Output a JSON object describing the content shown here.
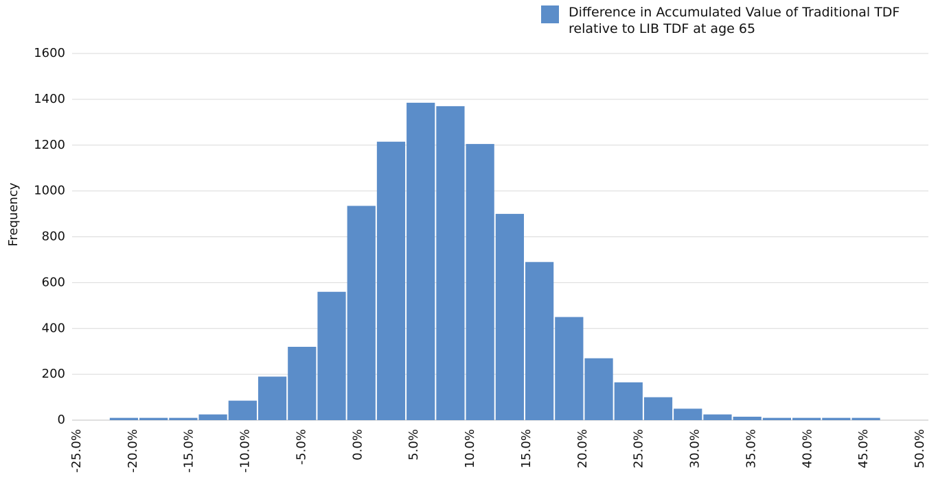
{
  "chart_data": {
    "type": "histogram",
    "y_label": "Frequency",
    "series": [
      {
        "name": "Difference in Accumulated Value of Traditional TDF relative to LIB TDF at age 65",
        "color": "#5b8dc9",
        "bins": [
          -22.14,
          -19.5,
          -16.86,
          -14.22,
          -11.58,
          -8.94,
          -6.3,
          -3.66,
          -1.02,
          1.62,
          4.26,
          6.9,
          9.54,
          12.18,
          14.82,
          17.46,
          20.1,
          22.74,
          25.38,
          28.02,
          30.66,
          33.3,
          35.94,
          38.58,
          41.22,
          43.86,
          46.5
        ],
        "values": [
          10,
          10,
          10,
          25,
          85,
          190,
          320,
          560,
          935,
          1215,
          1385,
          1370,
          1205,
          900,
          690,
          450,
          270,
          165,
          100,
          50,
          25,
          15,
          10,
          10,
          10,
          10
        ]
      }
    ],
    "xlim": [
      -25,
      50
    ],
    "xticks": [
      {
        "value": -25,
        "label": "-25.0%"
      },
      {
        "value": -20,
        "label": "-20.0%"
      },
      {
        "value": -15,
        "label": "-15.0%"
      },
      {
        "value": -10,
        "label": "-10.0%"
      },
      {
        "value": -5,
        "label": "-5.0%"
      },
      {
        "value": 0,
        "label": "0.0%"
      },
      {
        "value": 5,
        "label": "5.0%"
      },
      {
        "value": 10,
        "label": "10.0%"
      },
      {
        "value": 15,
        "label": "15.0%"
      },
      {
        "value": 20,
        "label": "20.0%"
      },
      {
        "value": 25,
        "label": "25.0%"
      },
      {
        "value": 30,
        "label": "30.0%"
      },
      {
        "value": 35,
        "label": "35.0%"
      },
      {
        "value": 40,
        "label": "40.0%"
      },
      {
        "value": 45,
        "label": "45.0%"
      },
      {
        "value": 50,
        "label": "50.0%"
      }
    ],
    "ylim": [
      0,
      1600
    ],
    "yticks": [
      0,
      200,
      400,
      600,
      800,
      1000,
      1200,
      1400,
      1600
    ],
    "grid": true,
    "legend": "top-right"
  }
}
